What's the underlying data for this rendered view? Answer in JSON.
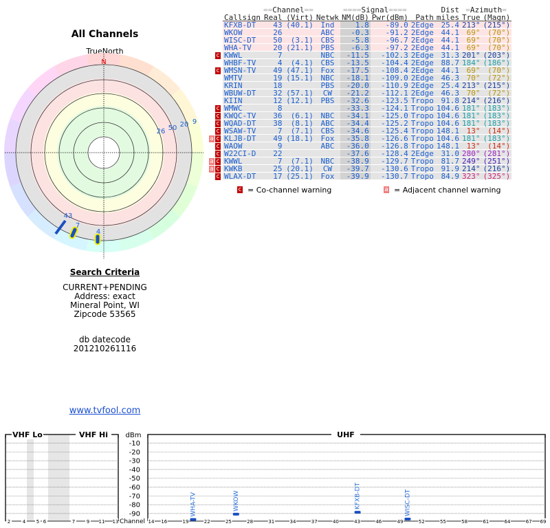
{
  "radar": {
    "title": "All Channels",
    "north_label": "TrueNorth",
    "n_mark": "N",
    "markers": [
      {
        "label": "43",
        "channel": 43,
        "azimuth": 213
      },
      {
        "label": "7",
        "channel": 7,
        "azimuth": 201
      },
      {
        "label": "4",
        "channel": 4,
        "azimuth": 184
      }
    ],
    "clustered_labels": [
      "26",
      "50",
      "20",
      "9"
    ]
  },
  "criteria": {
    "heading": "Search Criteria",
    "lines": [
      "CURRENT+PENDING",
      "Address: exact",
      "Mineral Point, WI",
      "Zipcode 53565"
    ]
  },
  "datecode": {
    "label": "db datecode",
    "value": "201210261116"
  },
  "site_link": "www.tvfool.com",
  "table": {
    "group_headers": {
      "channel": "Channel",
      "signal": "Signal",
      "dist": "Dist",
      "azimuth": "Azimuth"
    },
    "headers": [
      "Callsign",
      "Real",
      "(Virt)",
      "Netwk",
      "NM(dB)",
      "Pwr(dBm)",
      "Path",
      "miles",
      "True",
      "(Magn)"
    ],
    "rows": [
      {
        "call": "KFXB-DT",
        "real": "43",
        "virt": "(40.1)",
        "net": "Ind",
        "nm": "1.8",
        "pwr": "-89.0",
        "path": "2Edge",
        "dist": "25.4",
        "true": "213°",
        "magn": "(215°)",
        "color": "#1a3fa0",
        "warn": "",
        "pink": true
      },
      {
        "call": "WKOW",
        "real": "26",
        "virt": "",
        "net": "ABC",
        "nm": "-0.3",
        "pwr": "-91.2",
        "path": "2Edge",
        "dist": "44.1",
        "true": "69°",
        "magn": "(70°)",
        "color": "#b8960c",
        "warn": "",
        "pink": true
      },
      {
        "call": "WISC-DT",
        "real": "50",
        "virt": "(3.1)",
        "net": "CBS",
        "nm": "-5.8",
        "pwr": "-96.7",
        "path": "2Edge",
        "dist": "44.1",
        "true": "69°",
        "magn": "(70°)",
        "color": "#b8960c",
        "warn": "",
        "pink": true
      },
      {
        "call": "WHA-TV",
        "real": "20",
        "virt": "(21.1)",
        "net": "PBS",
        "nm": "-6.3",
        "pwr": "-97.2",
        "path": "2Edge",
        "dist": "44.1",
        "true": "69°",
        "magn": "(70°)",
        "color": "#b8960c",
        "warn": "",
        "pink": true
      },
      {
        "call": "KWWL",
        "real": "7",
        "virt": "",
        "net": "NBC",
        "nm": "-11.5",
        "pwr": "-102.3",
        "path": "2Edge",
        "dist": "31.3",
        "true": "201°",
        "magn": "(203°)",
        "color": "#1a3fa0",
        "warn": "c",
        "pink": false
      },
      {
        "call": "WHBF-TV",
        "real": "4",
        "virt": "(4.1)",
        "net": "CBS",
        "nm": "-13.5",
        "pwr": "-104.4",
        "path": "2Edge",
        "dist": "88.7",
        "true": "184°",
        "magn": "(186°)",
        "color": "#1ea0a8",
        "warn": "",
        "pink": false
      },
      {
        "call": "WMSN-TV",
        "real": "49",
        "virt": "(47.1)",
        "net": "Fox",
        "nm": "-17.5",
        "pwr": "-108.4",
        "path": "2Edge",
        "dist": "44.1",
        "true": "69°",
        "magn": "(70°)",
        "color": "#b8960c",
        "warn": "c",
        "pink": false
      },
      {
        "call": "WMTV",
        "real": "19",
        "virt": "(15.1)",
        "net": "NBC",
        "nm": "-18.1",
        "pwr": "-109.0",
        "path": "2Edge",
        "dist": "46.3",
        "true": "70°",
        "magn": "(72°)",
        "color": "#b8960c",
        "warn": "",
        "pink": false
      },
      {
        "call": "KRIN",
        "real": "18",
        "virt": "",
        "net": "PBS",
        "nm": "-20.0",
        "pwr": "-110.9",
        "path": "2Edge",
        "dist": "25.4",
        "true": "213°",
        "magn": "(215°)",
        "color": "#1a3fa0",
        "warn": "",
        "pink": false
      },
      {
        "call": "WBUW-DT",
        "real": "32",
        "virt": "(57.1)",
        "net": "CW",
        "nm": "-21.2",
        "pwr": "-112.1",
        "path": "2Edge",
        "dist": "46.3",
        "true": "70°",
        "magn": "(72°)",
        "color": "#b8960c",
        "warn": "",
        "pink": false
      },
      {
        "call": "KIIN",
        "real": "12",
        "virt": "(12.1)",
        "net": "PBS",
        "nm": "-32.6",
        "pwr": "-123.5",
        "path": "Tropo",
        "dist": "91.8",
        "true": "214°",
        "magn": "(216°)",
        "color": "#1a3fa0",
        "warn": "",
        "pink": false
      },
      {
        "call": "WMWC",
        "real": "8",
        "virt": "",
        "net": "",
        "nm": "-33.3",
        "pwr": "-124.1",
        "path": "Tropo",
        "dist": "104.6",
        "true": "181°",
        "magn": "(183°)",
        "color": "#1ea0a8",
        "warn": "c",
        "pink": false
      },
      {
        "call": "KWQC-TV",
        "real": "36",
        "virt": "(6.1)",
        "net": "NBC",
        "nm": "-34.1",
        "pwr": "-125.0",
        "path": "Tropo",
        "dist": "104.6",
        "true": "181°",
        "magn": "(183°)",
        "color": "#1ea0a8",
        "warn": "c",
        "pink": false
      },
      {
        "call": "WQAD-DT",
        "real": "38",
        "virt": "(8.1)",
        "net": "ABC",
        "nm": "-34.4",
        "pwr": "-125.2",
        "path": "Tropo",
        "dist": "104.6",
        "true": "181°",
        "magn": "(183°)",
        "color": "#1ea0a8",
        "warn": "c",
        "pink": false
      },
      {
        "call": "WSAW-TV",
        "real": "7",
        "virt": "(7.1)",
        "net": "CBS",
        "nm": "-34.6",
        "pwr": "-125.4",
        "path": "Tropo",
        "dist": "148.1",
        "true": "13°",
        "magn": "(14°)",
        "color": "#d02a10",
        "warn": "c",
        "pink": false
      },
      {
        "call": "KLJB-DT",
        "real": "49",
        "virt": "(18.1)",
        "net": "Fox",
        "nm": "-35.8",
        "pwr": "-126.6",
        "path": "Tropo",
        "dist": "104.6",
        "true": "181°",
        "magn": "(183°)",
        "color": "#1ea0a8",
        "warn": "ac",
        "pink": false
      },
      {
        "call": "WAOW",
        "real": "9",
        "virt": "",
        "net": "ABC",
        "nm": "-36.0",
        "pwr": "-126.8",
        "path": "Tropo",
        "dist": "148.1",
        "true": "13°",
        "magn": "(14°)",
        "color": "#d02a10",
        "warn": "c",
        "pink": false
      },
      {
        "call": "W22CI-D",
        "real": "22",
        "virt": "",
        "net": "",
        "nm": "-37.6",
        "pwr": "-128.4",
        "path": "2Edge",
        "dist": "31.0",
        "true": "280°",
        "magn": "(281°)",
        "color": "#9a20c0",
        "warn": "c",
        "pink": false
      },
      {
        "call": "KWWL",
        "real": "7",
        "virt": "(7.1)",
        "net": "NBC",
        "nm": "-38.9",
        "pwr": "-129.7",
        "path": "Tropo",
        "dist": "81.7",
        "true": "249°",
        "magn": "(251°)",
        "color": "#4a20b8",
        "warn": "ac",
        "pink": false
      },
      {
        "call": "KWKB",
        "real": "25",
        "virt": "(20.1)",
        "net": "CW",
        "nm": "-39.7",
        "pwr": "-130.6",
        "path": "Tropo",
        "dist": "91.9",
        "true": "214°",
        "magn": "(216°)",
        "color": "#1a3fa0",
        "warn": "ac",
        "pink": false
      },
      {
        "call": "WLAX-DT",
        "real": "17",
        "virt": "(25.1)",
        "net": "Fox",
        "nm": "-39.9",
        "pwr": "-130.7",
        "path": "Tropo",
        "dist": "84.9",
        "true": "323°",
        "magn": "(325°)",
        "color": "#d0207a",
        "warn": "c",
        "pink": false
      }
    ]
  },
  "legend": {
    "co_icon": "c",
    "co_text": "= Co-channel warning",
    "adj_icon": "a",
    "adj_text": "= Adjacent channel warning"
  },
  "spectrum": {
    "vhf_lo": "VHF Lo",
    "vhf_hi": "VHF Hi",
    "uhf": "UHF",
    "unit": "dBm",
    "axis_label": "Channel",
    "db_ticks": [
      "-10",
      "-20",
      "-30",
      "-40",
      "-50",
      "-60",
      "-70",
      "-80",
      "-90"
    ],
    "vhf_channels": [
      "2",
      "4",
      "5",
      "6",
      "7",
      "9",
      "11",
      "13"
    ],
    "uhf_channels": [
      "14",
      "16",
      "19",
      "22",
      "25",
      "28",
      "31",
      "34",
      "37",
      "40",
      "43",
      "46",
      "49",
      "52",
      "55",
      "58",
      "61",
      "64",
      "67",
      "69"
    ],
    "stations": [
      {
        "call": "WHA-TV",
        "channel": 20,
        "pwr": -97.2
      },
      {
        "call": "WKOW",
        "channel": 26,
        "pwr": -91.2
      },
      {
        "call": "KFXB-DT",
        "channel": 43,
        "pwr": -89.0
      },
      {
        "call": "WISC-DT",
        "channel": 50,
        "pwr": -96.7
      }
    ]
  }
}
